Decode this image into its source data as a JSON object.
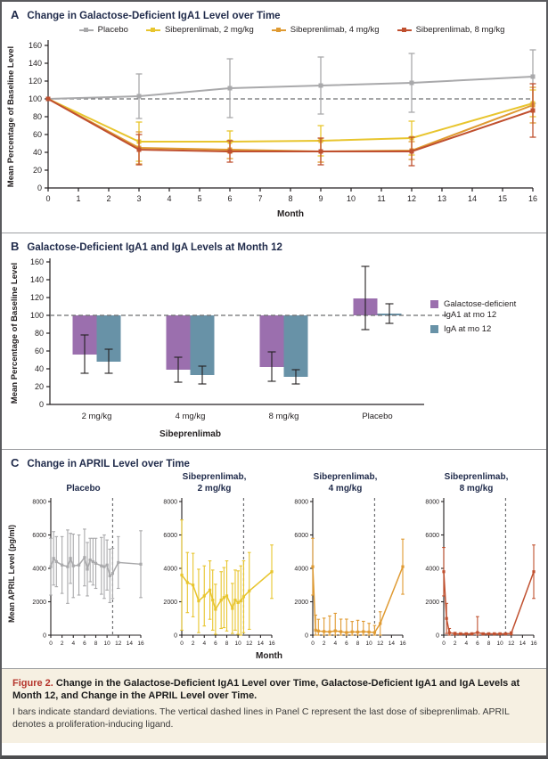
{
  "figure": {
    "caption": {
      "label": "Figure 2.",
      "title": "Change in the Galactose-Deficient IgA1 Level over Time, Galactose-Deficient IgA1 and IgA Levels at Month 12, and Change in the APRIL Level over Time.",
      "body": "I bars indicate standard deviations. The vertical dashed lines in Panel C represent the last dose of sibeprenlimab. APRIL denotes a proliferation-inducing ligand.",
      "label_color": "#b5342b",
      "background": "#f6f0e2"
    }
  },
  "panels": {
    "a": {
      "letter": "A",
      "title": "Change in Galactose-Deficient IgA1 Level over Time"
    },
    "b": {
      "letter": "B",
      "title": "Galactose-Deficient IgA1 and IgA Levels at Month 12"
    },
    "c": {
      "letter": "C",
      "title": "Change in APRIL Level over Time"
    }
  },
  "colors": {
    "placebo": "#a9a9ab",
    "sibeprenlimab_2mg": "#e8c52e",
    "sibeprenlimab_4mg": "#df9a32",
    "sibeprenlimab_8mg": "#c0502f",
    "gd_iga1_purple": "#9b6fae",
    "iga_blue": "#6892a7",
    "dashed_line": "#6e6f72",
    "axis": "#231f20"
  },
  "chart_data": [
    {
      "id": "panel-a",
      "type": "line",
      "title": "Change in Galactose-Deficient IgA1 Level over Time",
      "xlabel": "Month",
      "ylabel": "Mean Percentage of Baseline Level",
      "xlim": [
        0,
        16
      ],
      "ylim": [
        0,
        160
      ],
      "xticks": [
        0,
        1,
        2,
        3,
        4,
        5,
        6,
        7,
        8,
        9,
        10,
        11,
        12,
        13,
        14,
        15,
        16
      ],
      "yticks": [
        0,
        20,
        40,
        60,
        80,
        100,
        120,
        140,
        160
      ],
      "baseline_y": 100,
      "legend_position": "top",
      "series": [
        {
          "name": "Placebo",
          "color": "#a9a9ab",
          "x": [
            0,
            3,
            6,
            9,
            12,
            16
          ],
          "y": [
            100,
            103,
            112,
            115,
            118,
            125
          ],
          "err": [
            0,
            25,
            33,
            32,
            33,
            30
          ]
        },
        {
          "name": "Sibeprenlimab, 2 mg/kg",
          "color": "#e8c52e",
          "x": [
            0,
            3,
            6,
            9,
            12,
            16
          ],
          "y": [
            100,
            52,
            52,
            53,
            56,
            95
          ],
          "err": [
            0,
            22,
            12,
            17,
            19,
            15
          ]
        },
        {
          "name": "Sibeprenlimab, 4 mg/kg",
          "color": "#df9a32",
          "x": [
            0,
            3,
            6,
            9,
            12,
            16
          ],
          "y": [
            100,
            45,
            43,
            41,
            42,
            93
          ],
          "err": [
            0,
            18,
            10,
            12,
            10,
            20
          ]
        },
        {
          "name": "Sibeprenlimab, 8 mg/kg",
          "color": "#c0502f",
          "x": [
            0,
            3,
            6,
            9,
            12,
            16
          ],
          "y": [
            100,
            43,
            41,
            41,
            41,
            87
          ],
          "err": [
            0,
            17,
            12,
            15,
            16,
            30
          ]
        }
      ]
    },
    {
      "id": "panel-b",
      "type": "bar",
      "title": "Galactose-Deficient IgA1 and IgA Levels at Month 12",
      "ylabel": "Mean Percentage of Baseline Level",
      "ylim": [
        0,
        160
      ],
      "yticks": [
        0,
        20,
        40,
        60,
        80,
        100,
        120,
        140,
        160
      ],
      "baseline_y": 100,
      "categories": [
        "2 mg/kg",
        "4 mg/kg",
        "8 mg/kg",
        "Placebo"
      ],
      "group_label": "Sibeprenlimab",
      "legend_position": "right",
      "series": [
        {
          "name": "Galactose-deficient IgA1 at mo 12",
          "color": "#9b6fae",
          "values": [
            56,
            39,
            42,
            119
          ],
          "err_low": [
            35,
            25,
            26,
            84
          ],
          "err_high": [
            78,
            53,
            59,
            155
          ]
        },
        {
          "name": "IgA at mo 12",
          "color": "#6892a7",
          "values": [
            48,
            33,
            31,
            102
          ],
          "err_low": [
            35,
            23,
            23,
            91
          ],
          "err_high": [
            62,
            43,
            39,
            113
          ]
        }
      ]
    },
    {
      "id": "panel-c",
      "type": "line",
      "title": "Change in APRIL Level over Time",
      "xlabel": "Month",
      "ylabel": "Mean APRIL Level (pg/ml)",
      "xlim": [
        0,
        16
      ],
      "ylim": [
        0,
        8000
      ],
      "xticks": [
        0,
        2,
        4,
        6,
        8,
        10,
        12,
        14,
        16
      ],
      "yticks": [
        0,
        2000,
        4000,
        6000,
        8000
      ],
      "dashed_x": 11,
      "dashed_x_meaning": "last dose of sibeprenlimab",
      "subplots": [
        {
          "title_line1": "Placebo",
          "title_line2": "",
          "color": "#a9a9ab",
          "x": [
            0,
            0.5,
            1,
            2,
            3,
            3.5,
            4,
            5,
            6,
            6.5,
            7,
            7.5,
            8,
            9,
            9.5,
            10,
            10.5,
            11,
            12,
            16
          ],
          "y": [
            4100,
            4600,
            4400,
            4200,
            4100,
            4600,
            4150,
            4200,
            4650,
            3950,
            4500,
            4400,
            4300,
            4150,
            4100,
            4200,
            3550,
            3700,
            4350,
            4250
          ],
          "err": [
            1700,
            1600,
            1500,
            1700,
            2200,
            1500,
            1900,
            1800,
            1700,
            1600,
            1300,
            1400,
            1500,
            1700,
            1900,
            1500,
            1600,
            1500,
            1550,
            2000
          ]
        },
        {
          "title_line1": "Sibeprenlimab,",
          "title_line2": "2 mg/kg",
          "color": "#e8c52e",
          "x": [
            0,
            1,
            2,
            3,
            4,
            5,
            5.5,
            6,
            7,
            7.5,
            8,
            9,
            9.5,
            10,
            10.5,
            11,
            12,
            16
          ],
          "y": [
            3600,
            3150,
            3000,
            2050,
            2350,
            2700,
            2100,
            1550,
            2100,
            2250,
            2350,
            1600,
            2100,
            1950,
            2050,
            2300,
            2650,
            3800
          ],
          "err": [
            3300,
            1800,
            1900,
            1900,
            1800,
            1750,
            1800,
            1500,
            1700,
            1800,
            2100,
            1500,
            1800,
            1900,
            2100,
            2150,
            2300,
            1600
          ]
        },
        {
          "title_line1": "Sibeprenlimab,",
          "title_line2": "4 mg/kg",
          "color": "#df9a32",
          "x": [
            0,
            0.5,
            1,
            2,
            3,
            4,
            5,
            6,
            7,
            8,
            9,
            10,
            11,
            12,
            16
          ],
          "y": [
            4100,
            300,
            250,
            220,
            200,
            260,
            210,
            160,
            200,
            190,
            210,
            190,
            160,
            700,
            4100
          ],
          "err": [
            1700,
            900,
            700,
            800,
            950,
            1050,
            750,
            800,
            620,
            700,
            620,
            520,
            420,
            700,
            1650
          ]
        },
        {
          "title_line1": "Sibeprenlimab,",
          "title_line2": "8 mg/kg",
          "color": "#c0502f",
          "x": [
            0,
            0.5,
            1,
            2,
            3,
            4,
            5,
            6,
            7,
            8,
            9,
            10,
            11,
            12,
            16
          ],
          "y": [
            3800,
            1000,
            150,
            90,
            80,
            80,
            80,
            160,
            80,
            80,
            80,
            80,
            80,
            110,
            3800
          ],
          "err": [
            1450,
            900,
            250,
            80,
            60,
            60,
            60,
            950,
            60,
            60,
            60,
            60,
            60,
            90,
            1600
          ]
        }
      ]
    }
  ]
}
